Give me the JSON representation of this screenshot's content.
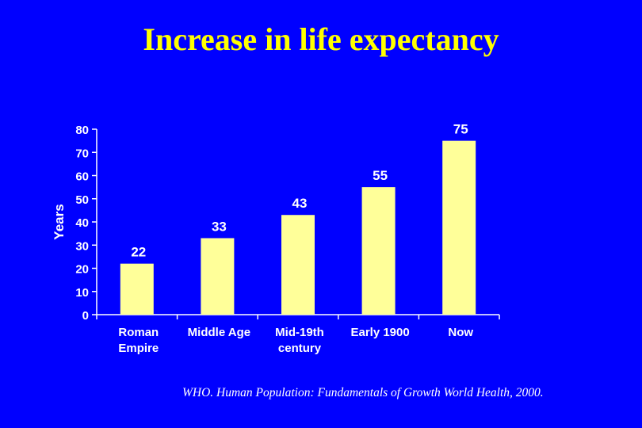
{
  "title": "Increase in life expectancy",
  "citation": "WHO. Human Population: Fundamentals of Growth World Health, 2000.",
  "colors": {
    "background": "#0000FF",
    "title": "#FFFF00",
    "bar": "#FFFF99",
    "text": "#FFFFFF"
  },
  "chart_data": {
    "type": "bar",
    "categories": [
      [
        "Roman",
        "Empire"
      ],
      [
        "Middle Age"
      ],
      [
        "Mid-19th",
        "century"
      ],
      [
        "Early 1900"
      ],
      [
        "Now"
      ]
    ],
    "values": [
      22,
      33,
      43,
      55,
      75
    ],
    "data_labels": [
      "22",
      "33",
      "43",
      "55",
      "75"
    ],
    "ylabel": "Years",
    "xlabel": "",
    "ylim": [
      0,
      80
    ],
    "yticks": [
      0,
      10,
      20,
      30,
      40,
      50,
      60,
      70,
      80
    ],
    "grid": false,
    "legend": "none"
  }
}
